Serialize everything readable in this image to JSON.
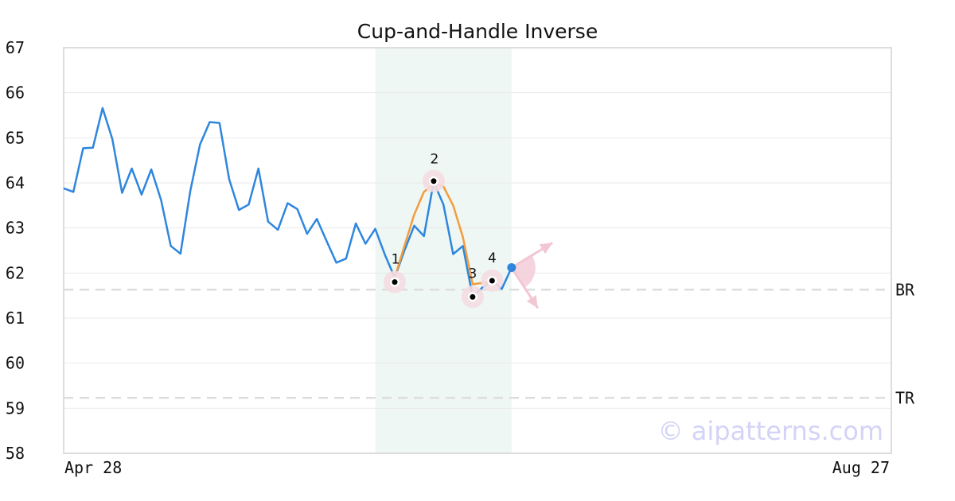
{
  "chart_data": {
    "type": "line",
    "title": "Cup-and-Handle Inverse",
    "xlabel": "",
    "ylabel": "",
    "ylim": [
      58,
      67
    ],
    "y_ticks": [
      58,
      59,
      60,
      61,
      62,
      63,
      64,
      65,
      66,
      67
    ],
    "x_tick_labels": [
      "Apr 28",
      "Aug 27"
    ],
    "grid": "horizontal",
    "series": [
      {
        "color": "#2e86de",
        "values": [
          63.88,
          63.8,
          64.77,
          64.78,
          65.66,
          64.97,
          63.78,
          64.32,
          63.74,
          64.3,
          63.62,
          62.6,
          62.43,
          63.82,
          64.85,
          65.35,
          65.33,
          64.08,
          63.4,
          63.52,
          64.32,
          63.14,
          62.96,
          63.55,
          63.42,
          62.87,
          63.2,
          62.71,
          62.23,
          62.32,
          63.1,
          62.65,
          62.98,
          62.4,
          61.9,
          62.5,
          63.05,
          62.82,
          64.02,
          63.52,
          62.42,
          62.6,
          61.48,
          61.68,
          61.82,
          61.65,
          62.12
        ]
      }
    ],
    "pattern_overlay": {
      "color": "#f39c3d",
      "values": [
        [
          34,
          61.9
        ],
        [
          35,
          62.6
        ],
        [
          36,
          63.3
        ],
        [
          37,
          63.8
        ],
        [
          38,
          63.98
        ],
        [
          39,
          63.92
        ],
        [
          40,
          63.5
        ],
        [
          41,
          62.8
        ],
        [
          42,
          61.75
        ],
        [
          43,
          61.78
        ],
        [
          44,
          61.82
        ]
      ]
    },
    "highlight_x_range": [
      32,
      46
    ],
    "pivots": [
      {
        "label": "1",
        "x": 34,
        "y": 61.8
      },
      {
        "label": "2",
        "x": 38,
        "y": 64.04
      },
      {
        "label": "3",
        "x": 42,
        "y": 61.47
      },
      {
        "label": "4",
        "x": 44,
        "y": 61.83
      }
    ],
    "last_point": {
      "x": 46,
      "y": 62.12
    },
    "projection_targets": [
      {
        "direction": "up",
        "y": 62.67
      },
      {
        "direction": "down",
        "y": 61.22
      }
    ],
    "reference_lines": [
      {
        "label": "BR",
        "y": 61.63
      },
      {
        "label": "TR",
        "y": 59.23
      }
    ],
    "x_range": [
      0,
      85
    ],
    "colors": {
      "line": "#2e86de",
      "pattern": "#f39c3d",
      "highlight": "#eef7f3",
      "pivot_ring": "#f4dce2",
      "projection": "#f2c6d3",
      "reference": "#dddddd",
      "watermark": "#d3d3f7"
    }
  },
  "watermark": "© aipatterns.com"
}
